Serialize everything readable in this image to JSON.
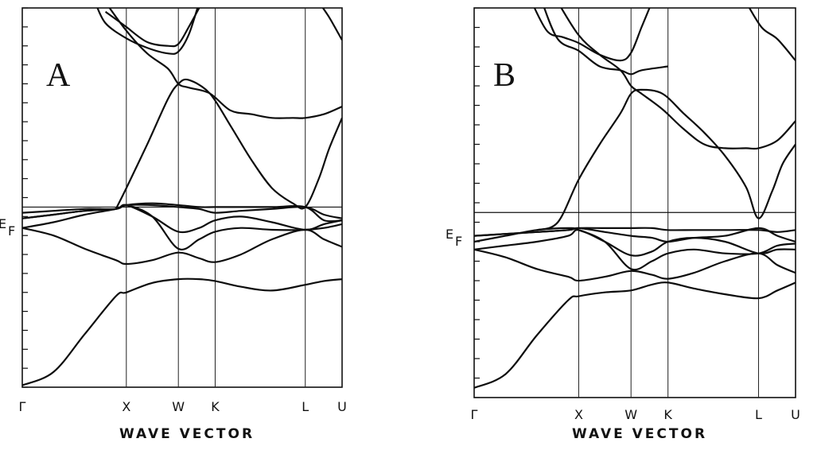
{
  "chart_data": [
    {
      "type": "line",
      "panel_label": "A",
      "xlabel": "WAVE VECTOR",
      "x_ticks": [
        "Γ",
        "X",
        "W",
        "K",
        "L",
        "U"
      ],
      "x_positions": [
        0,
        1,
        1.5,
        1.8536,
        2.7196,
        3.0732
      ],
      "xlim": [
        0,
        3.0732
      ],
      "ylim": [
        -1,
        1
      ],
      "y_ticks": [
        -1,
        -0.9,
        -0.8,
        -0.7,
        -0.6,
        -0.5,
        -0.4,
        -0.3,
        -0.2,
        -0.1,
        0,
        0.1,
        0.2,
        0.3,
        0.4,
        0.5,
        0.6,
        0.7,
        0.8,
        0.9,
        1
      ],
      "fermi_label": "EF",
      "fermi_level": -0.05,
      "grid": "vertical lines at symmetry points",
      "series": [
        {
          "x": [
            0,
            0.3,
            0.6,
            0.9,
            1,
            1.25,
            1.5,
            1.7,
            1.8536,
            2.1,
            2.4,
            2.7196,
            2.9,
            3.0732
          ],
          "values": [
            -0.99,
            -0.92,
            -0.72,
            -0.52,
            -0.5,
            -0.45,
            -0.43,
            -0.43,
            -0.44,
            -0.47,
            -0.49,
            -0.46,
            -0.44,
            -0.43
          ]
        },
        {
          "x": [
            0,
            0.3,
            0.6,
            0.9,
            1,
            1.25,
            1.5,
            1.7,
            1.8536,
            2.1,
            2.4,
            2.7196,
            2.9,
            3.0732
          ],
          "values": [
            -0.16,
            -0.2,
            -0.27,
            -0.33,
            -0.35,
            -0.33,
            -0.29,
            -0.32,
            -0.34,
            -0.3,
            -0.22,
            -0.17,
            -0.22,
            -0.26
          ]
        },
        {
          "x": [
            0,
            0.3,
            0.6,
            0.9,
            1,
            1.25,
            1.5,
            1.7,
            1.8536,
            2.1,
            2.4,
            2.7196,
            2.9,
            3.0732
          ],
          "values": [
            -0.16,
            -0.13,
            -0.09,
            -0.06,
            -0.04,
            -0.1,
            -0.27,
            -0.22,
            -0.18,
            -0.16,
            -0.17,
            -0.17,
            -0.16,
            -0.14
          ]
        },
        {
          "x": [
            0,
            0.3,
            0.6,
            0.9,
            1,
            1.25,
            1.5,
            1.7,
            1.8536,
            2.1,
            2.4,
            2.7196,
            2.9,
            3.0732
          ],
          "values": [
            -0.08,
            -0.07,
            -0.06,
            -0.06,
            -0.04,
            -0.1,
            -0.18,
            -0.16,
            -0.12,
            -0.1,
            -0.13,
            -0.17,
            -0.14,
            -0.12
          ]
        },
        {
          "x": [
            0,
            0.3,
            0.6,
            0.9,
            1,
            1.25,
            1.5,
            1.7,
            1.8536,
            2.1,
            2.4,
            2.7196,
            2.9,
            3.0732
          ],
          "values": [
            -0.11,
            -0.09,
            -0.07,
            -0.06,
            -0.04,
            -0.04,
            -0.05,
            -0.06,
            -0.08,
            -0.07,
            -0.06,
            -0.05,
            -0.09,
            -0.11
          ]
        },
        {
          "x": [
            0,
            0.3,
            0.6,
            0.9,
            1,
            1.25,
            1.5,
            1.7,
            1.8536,
            2.1,
            2.4,
            2.7196,
            2.9,
            3.0732
          ],
          "values": [
            -0.11,
            -0.09,
            -0.07,
            -0.06,
            -0.04,
            -0.03,
            -0.04,
            -0.05,
            -0.05,
            -0.05,
            -0.05,
            -0.05,
            -0.12,
            -0.12
          ]
        },
        {
          "x": [
            0.9,
            1,
            1.2,
            1.4,
            1.5,
            1.6,
            1.8,
            2,
            2.2,
            2.4,
            2.6,
            2.7196,
            2.85,
            2.95,
            3.0732
          ],
          "values": [
            -0.06,
            0.05,
            0.28,
            0.52,
            0.6,
            0.62,
            0.55,
            0.38,
            0.2,
            0.05,
            -0.03,
            -0.05,
            0.1,
            0.26,
            0.42
          ]
        },
        {
          "x": [
            0.8,
            1,
            1.2,
            1.4,
            1.5,
            1.6,
            1.8,
            2,
            2.2,
            2.4,
            2.6,
            2.7196,
            2.9,
            3.0732
          ],
          "values": [
            1.03,
            0.88,
            0.76,
            0.68,
            0.6,
            0.58,
            0.55,
            0.46,
            0.44,
            0.42,
            0.42,
            0.42,
            0.44,
            0.48
          ]
        },
        {
          "x": [
            0.7,
            0.8,
            1,
            1.2,
            1.4,
            1.5,
            1.6,
            1.7
          ],
          "values": [
            1.03,
            0.92,
            0.84,
            0.79,
            0.76,
            0.77,
            0.86,
            1.03
          ]
        },
        {
          "x": [
            0.8,
            0.9,
            1,
            1.2,
            1.4,
            1.5,
            1.6,
            1.7
          ],
          "values": [
            0.98,
            0.94,
            0.9,
            0.82,
            0.8,
            0.81,
            0.9,
            1.0
          ]
        },
        {
          "x": [
            2.85,
            2.95,
            3.0732
          ],
          "values": [
            1.03,
            0.95,
            0.83
          ]
        }
      ]
    },
    {
      "type": "line",
      "panel_label": "B",
      "xlabel": "WAVE VECTOR",
      "x_ticks": [
        "Γ",
        "X",
        "W",
        "K",
        "L",
        "U"
      ],
      "x_positions": [
        0,
        1,
        1.5,
        1.8536,
        2.7196,
        3.0732
      ],
      "xlim": [
        0,
        3.0732
      ],
      "ylim": [
        -1,
        1
      ],
      "y_ticks": [
        -1,
        -0.9,
        -0.8,
        -0.7,
        -0.6,
        -0.5,
        -0.4,
        -0.3,
        -0.2,
        -0.1,
        0,
        0.1,
        0.2,
        0.3,
        0.4,
        0.5,
        0.6,
        0.7,
        0.8,
        0.9,
        1
      ],
      "fermi_label": "EF",
      "fermi_level": -0.05,
      "grid": "vertical lines at symmetry points",
      "series": [
        {
          "x": [
            0,
            0.3,
            0.6,
            0.9,
            1,
            1.25,
            1.5,
            1.7,
            1.8536,
            2.1,
            2.4,
            2.7196,
            2.9,
            3.0732
          ],
          "values": [
            -0.95,
            -0.88,
            -0.68,
            -0.5,
            -0.48,
            -0.46,
            -0.45,
            -0.42,
            -0.41,
            -0.44,
            -0.47,
            -0.49,
            -0.45,
            -0.41
          ]
        },
        {
          "x": [
            0,
            0.3,
            0.6,
            0.9,
            1,
            1.25,
            1.5,
            1.7,
            1.8536,
            2.1,
            2.4,
            2.7196,
            2.9,
            3.0732
          ],
          "values": [
            -0.24,
            -0.28,
            -0.34,
            -0.38,
            -0.4,
            -0.38,
            -0.35,
            -0.37,
            -0.39,
            -0.36,
            -0.3,
            -0.26,
            -0.32,
            -0.36
          ]
        },
        {
          "x": [
            0,
            0.3,
            0.6,
            0.9,
            1,
            1.25,
            1.5,
            1.7,
            1.8536,
            2.1,
            2.4,
            2.7196,
            2.9,
            3.0732
          ],
          "values": [
            -0.2,
            -0.17,
            -0.14,
            -0.13,
            -0.14,
            -0.2,
            -0.34,
            -0.3,
            -0.26,
            -0.24,
            -0.26,
            -0.26,
            -0.22,
            -0.21
          ]
        },
        {
          "x": [
            0,
            0.3,
            0.6,
            0.9,
            1,
            1.25,
            1.5,
            1.7,
            1.8536,
            2.1,
            2.4,
            2.7196,
            2.9,
            3.0732
          ],
          "values": [
            -0.24,
            -0.22,
            -0.2,
            -0.17,
            -0.14,
            -0.2,
            -0.27,
            -0.25,
            -0.2,
            -0.18,
            -0.2,
            -0.26,
            -0.24,
            -0.24
          ]
        },
        {
          "x": [
            0,
            0.3,
            0.6,
            0.9,
            1,
            1.25,
            1.5,
            1.7,
            1.8536,
            2.1,
            2.4,
            2.7196,
            2.9,
            3.0732
          ],
          "values": [
            -0.17,
            -0.16,
            -0.15,
            -0.14,
            -0.13,
            -0.15,
            -0.17,
            -0.18,
            -0.2,
            -0.18,
            -0.17,
            -0.13,
            -0.17,
            -0.2
          ]
        },
        {
          "x": [
            0,
            0.3,
            0.6,
            0.9,
            1,
            1.25,
            1.5,
            1.7,
            1.8536,
            2.1,
            2.4,
            2.7196,
            2.9,
            3.0732
          ],
          "values": [
            -0.17,
            -0.16,
            -0.15,
            -0.14,
            -0.13,
            -0.13,
            -0.13,
            -0.13,
            -0.14,
            -0.14,
            -0.14,
            -0.14,
            -0.15,
            -0.14
          ]
        },
        {
          "x": [
            0.6,
            0.8,
            1,
            1.2,
            1.4,
            1.5,
            1.6,
            1.8,
            2,
            2.2,
            2.4,
            2.6,
            2.7196,
            2.85,
            2.95,
            3.0732
          ],
          "values": [
            -0.14,
            -0.1,
            0.12,
            0.3,
            0.46,
            0.56,
            0.58,
            0.56,
            0.46,
            0.36,
            0.24,
            0.08,
            -0.08,
            0.06,
            0.2,
            0.3
          ]
        },
        {
          "x": [
            0.8,
            1,
            1.2,
            1.4,
            1.5,
            1.6,
            1.8,
            2,
            2.2,
            2.4,
            2.6,
            2.7196,
            2.9,
            3.0732
          ],
          "values": [
            1.03,
            0.86,
            0.76,
            0.68,
            0.6,
            0.56,
            0.48,
            0.38,
            0.3,
            0.28,
            0.28,
            0.28,
            0.32,
            0.42
          ]
        },
        {
          "x": [
            0.55,
            0.7,
            0.85,
            1,
            1.2,
            1.4,
            1.5,
            1.6,
            1.7
          ],
          "values": [
            1.03,
            0.88,
            0.85,
            0.82,
            0.76,
            0.73,
            0.77,
            0.9,
            1.03
          ]
        },
        {
          "x": [
            0.65,
            0.8,
            1,
            1.2,
            1.4,
            1.5,
            1.6,
            1.8536
          ],
          "values": [
            1.03,
            0.84,
            0.78,
            0.7,
            0.68,
            0.66,
            0.68,
            0.7
          ]
        },
        {
          "x": [
            2.6,
            2.75,
            2.9,
            3.0732
          ],
          "values": [
            1.03,
            0.9,
            0.84,
            0.73
          ]
        }
      ]
    }
  ]
}
